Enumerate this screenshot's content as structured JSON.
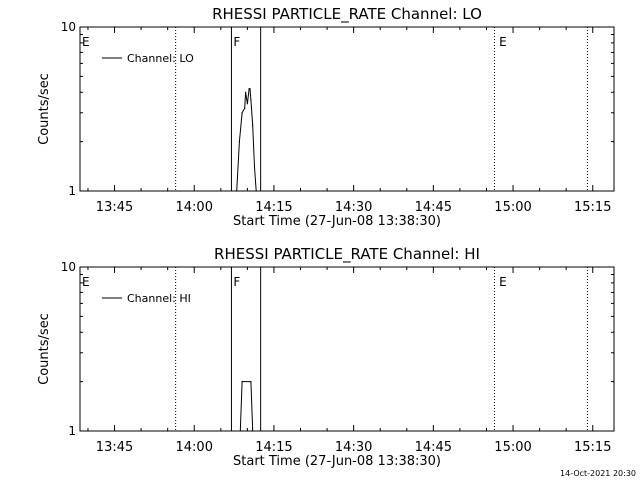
{
  "footer": {
    "timestamp": "14-Oct-2021 20:30"
  },
  "chart_data": [
    {
      "type": "line",
      "title": "RHESSI PARTICLE_RATE Channel: LO",
      "xlabel": "Start Time (27-Jun-08 13:38:30)",
      "ylabel": "Counts/sec",
      "yscale": "log",
      "ylim": [
        1,
        10
      ],
      "xlim": [
        "13:38:30",
        "15:19:00"
      ],
      "x_ticks": [
        "13:45",
        "14:00",
        "14:15",
        "14:30",
        "14:45",
        "15:00",
        "15:15"
      ],
      "y_ticks": [
        "1",
        "10"
      ],
      "legend": {
        "label": "Channel: LO",
        "position": "top-left"
      },
      "vlines_dotted": [
        "13:56:30",
        "14:56:30",
        "15:14:00"
      ],
      "vlines_solid": [
        "14:07:00",
        "14:12:30"
      ],
      "flags": [
        {
          "label": "E",
          "at": "13:38:30"
        },
        {
          "label": "F",
          "at": "14:07:00"
        },
        {
          "label": "E",
          "at": "14:57:00"
        }
      ],
      "series": [
        {
          "name": "Channel: LO",
          "x": [
            "14:08:00",
            "14:08:30",
            "14:09:00",
            "14:09:30",
            "14:09:40",
            "14:10:00",
            "14:10:20",
            "14:10:30",
            "14:10:40",
            "14:11:00",
            "14:11:20",
            "14:11:40"
          ],
          "y": [
            1,
            2.0,
            3.0,
            3.2,
            4.0,
            3.4,
            4.2,
            4.2,
            3.6,
            2.5,
            1.4,
            1
          ]
        }
      ]
    },
    {
      "type": "line",
      "title": "RHESSI PARTICLE_RATE Channel: HI",
      "xlabel": "Start Time (27-Jun-08 13:38:30)",
      "ylabel": "Counts/sec",
      "yscale": "log",
      "ylim": [
        1,
        10
      ],
      "xlim": [
        "13:38:30",
        "15:19:00"
      ],
      "x_ticks": [
        "13:45",
        "14:00",
        "14:15",
        "14:30",
        "14:45",
        "15:00",
        "15:15"
      ],
      "y_ticks": [
        "1",
        "10"
      ],
      "legend": {
        "label": "Channel: HI",
        "position": "top-left"
      },
      "vlines_dotted": [
        "13:56:30",
        "14:56:30",
        "15:14:00"
      ],
      "vlines_solid": [
        "14:07:00",
        "14:12:30"
      ],
      "flags": [
        {
          "label": "E",
          "at": "13:38:30"
        },
        {
          "label": "F",
          "at": "14:07:00"
        },
        {
          "label": "E",
          "at": "14:57:00"
        }
      ],
      "series": [
        {
          "name": "Channel: HI",
          "x": [
            "14:08:40",
            "14:09:00",
            "14:10:40",
            "14:11:00"
          ],
          "y": [
            1,
            2.0,
            2.0,
            1
          ]
        }
      ]
    }
  ]
}
